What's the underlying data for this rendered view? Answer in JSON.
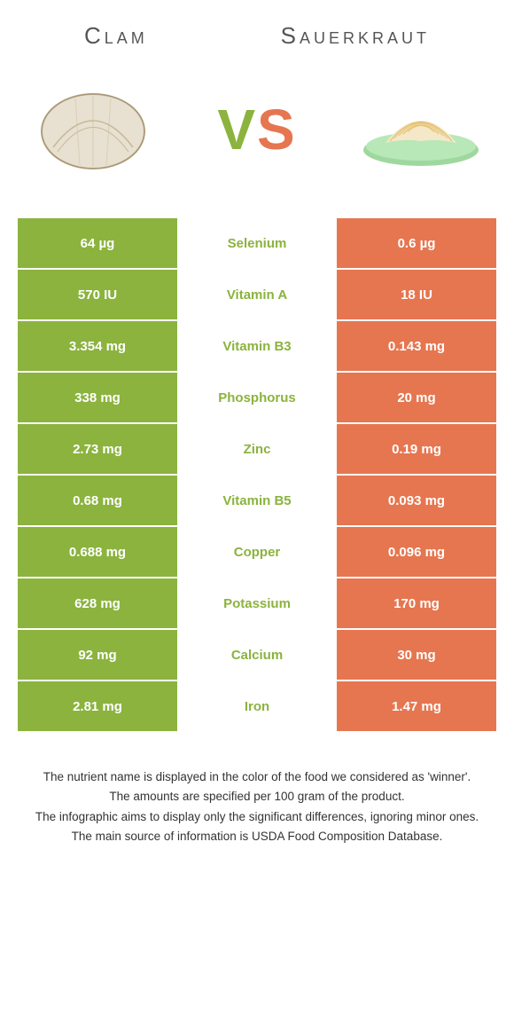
{
  "header": {
    "left_title": "Clam",
    "right_title": "Sauerkraut"
  },
  "vs": {
    "v": "V",
    "s": "S"
  },
  "colors": {
    "left_bg": "#8bb33e",
    "right_bg": "#e67650",
    "mid_text_left": "#8bb33e",
    "mid_text_right": "#e67650",
    "row_gap": "#ffffff"
  },
  "table": {
    "rows": [
      {
        "left": "64 µg",
        "label": "Selenium",
        "right": "0.6 µg",
        "winner": "left"
      },
      {
        "left": "570 IU",
        "label": "Vitamin A",
        "right": "18 IU",
        "winner": "left"
      },
      {
        "left": "3.354 mg",
        "label": "Vitamin B3",
        "right": "0.143 mg",
        "winner": "left"
      },
      {
        "left": "338 mg",
        "label": "Phosphorus",
        "right": "20 mg",
        "winner": "left"
      },
      {
        "left": "2.73 mg",
        "label": "Zinc",
        "right": "0.19 mg",
        "winner": "left"
      },
      {
        "left": "0.68 mg",
        "label": "Vitamin B5",
        "right": "0.093 mg",
        "winner": "left"
      },
      {
        "left": "0.688 mg",
        "label": "Copper",
        "right": "0.096 mg",
        "winner": "left"
      },
      {
        "left": "628 mg",
        "label": "Potassium",
        "right": "170 mg",
        "winner": "left"
      },
      {
        "left": "92 mg",
        "label": "Calcium",
        "right": "30 mg",
        "winner": "left"
      },
      {
        "left": "2.81 mg",
        "label": "Iron",
        "right": "1.47 mg",
        "winner": "left"
      }
    ]
  },
  "footer": {
    "line1": "The nutrient name is displayed in the color of the food we considered as 'winner'.",
    "line2": "The amounts are specified per 100 gram of the product.",
    "line3": "The infographic aims to display only the significant differences, ignoring minor ones.",
    "line4": "The main source of information is USDA Food Composition Database."
  },
  "icons": {
    "left": "clam-icon",
    "right": "sauerkraut-icon"
  }
}
